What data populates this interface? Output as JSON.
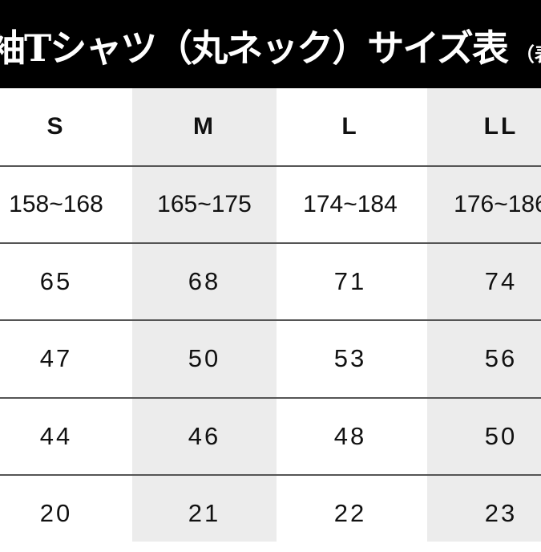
{
  "header": {
    "title": "袖Tシャツ（丸ネック）サイズ表",
    "note": "（表記：c"
  },
  "table": {
    "columns": [
      "S",
      "M",
      "L",
      "LL"
    ],
    "rows": [
      [
        "158~168",
        "165~175",
        "174~184",
        "176~186"
      ],
      [
        "65",
        "68",
        "71",
        "74"
      ],
      [
        "47",
        "50",
        "53",
        "56"
      ],
      [
        "44",
        "46",
        "48",
        "50"
      ],
      [
        "20",
        "21",
        "22",
        "23"
      ]
    ]
  },
  "colors": {
    "header_bg": "#000000",
    "alt_column": "#ececec"
  }
}
